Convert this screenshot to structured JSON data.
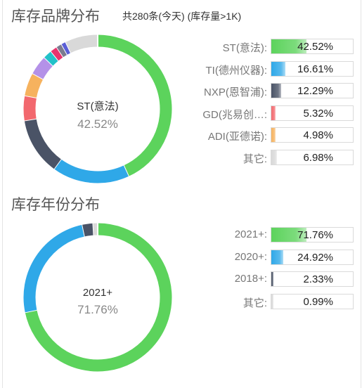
{
  "brand_section": {
    "title": "库存品牌分布",
    "subtitle": "共280条(今天)  (库存量>1K)",
    "center_name": "ST(意法)",
    "center_value": "42.52%"
  },
  "year_section": {
    "title": "库存年份分布",
    "center_name": "2021+",
    "center_value": "71.76%"
  },
  "chart_data": [
    {
      "type": "pie",
      "title": "库存品牌分布",
      "donut": true,
      "legend_placement": "right",
      "slices": [
        {
          "label": "ST(意法)",
          "value": 42.52,
          "display": "42.52%",
          "color": "#5cd35c",
          "legend": true
        },
        {
          "label": "TI(德州仪器)",
          "value": 16.61,
          "display": "16.61%",
          "color": "#2fa8e8",
          "legend": true
        },
        {
          "label": "NXP(恩智浦)",
          "value": 12.29,
          "display": "12.29%",
          "color": "#4a5366",
          "legend": true
        },
        {
          "label": "GD(兆易创…",
          "value": 5.32,
          "display": "5.32%",
          "color": "#f2686e",
          "legend": true
        },
        {
          "label": "ADI(亚德诺)",
          "value": 4.98,
          "display": "4.98%",
          "color": "#f6b25e",
          "legend": true
        },
        {
          "value": 4.2,
          "color": "#b491e8",
          "legend": false
        },
        {
          "value": 1.9,
          "color": "#22c1c9",
          "legend": false
        },
        {
          "value": 1.5,
          "color": "#e8336e",
          "legend": false
        },
        {
          "value": 1.2,
          "color": "#7b7b8f",
          "legend": false
        },
        {
          "value": 1.0,
          "color": "#5b5fd6",
          "legend": false
        },
        {
          "label": "其它",
          "value": 6.98,
          "display": "6.98%",
          "color": "#d9d9d9",
          "legend": true
        }
      ]
    },
    {
      "type": "pie",
      "title": "库存年份分布",
      "donut": true,
      "legend_placement": "right",
      "slices": [
        {
          "label": "2021+",
          "value": 71.76,
          "display": "71.76%",
          "color": "#5cd35c",
          "legend": true
        },
        {
          "label": "2020+",
          "value": 24.92,
          "display": "24.92%",
          "color": "#2fa8e8",
          "legend": true
        },
        {
          "label": "2018+",
          "value": 2.33,
          "display": "2.33%",
          "color": "#4a5366",
          "legend": true
        },
        {
          "label": "其它",
          "value": 0.99,
          "display": "0.99%",
          "color": "#d9d9d9",
          "legend": true
        }
      ]
    }
  ]
}
